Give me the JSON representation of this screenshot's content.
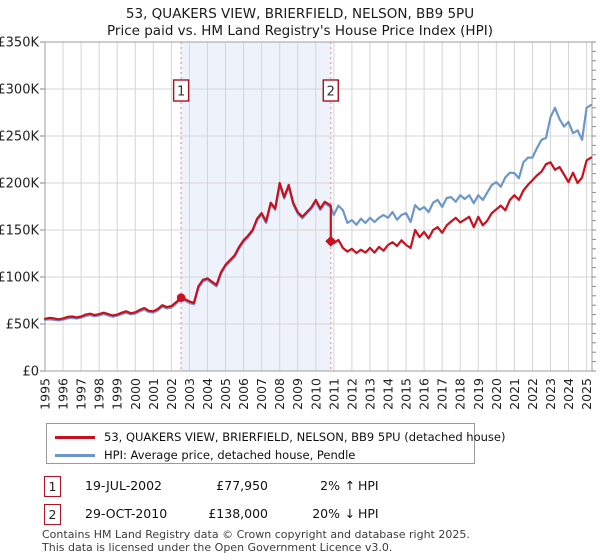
{
  "title": {
    "line1": "53, QUAKERS VIEW, BRIERFIELD, NELSON, BB9 5PU",
    "line2": "Price paid vs. HM Land Registry's House Price Index (HPI)"
  },
  "chart_data": {
    "type": "line",
    "title": "53, QUAKERS VIEW, BRIERFIELD, NELSON, BB9 5PU",
    "subtitle": "Price paid vs. HM Land Registry's House Price Index (HPI)",
    "ylim": [
      0,
      350000
    ],
    "ytick_step": 50000,
    "ytick_labels": [
      "£0",
      "£50K",
      "£100K",
      "£150K",
      "£200K",
      "£250K",
      "£300K",
      "£350K"
    ],
    "xlim": [
      1995,
      2025.3
    ],
    "xticks": [
      1995,
      1996,
      1997,
      1998,
      1999,
      2000,
      2001,
      2002,
      2003,
      2004,
      2005,
      2006,
      2007,
      2008,
      2009,
      2010,
      2011,
      2012,
      2013,
      2014,
      2015,
      2016,
      2017,
      2018,
      2019,
      2020,
      2021,
      2022,
      2023,
      2024,
      2025
    ],
    "grid": true,
    "legend_position": "bottom",
    "shaded_span": [
      2002.54,
      2010.83
    ],
    "colors": {
      "price_paid": "#c8101e",
      "hpi": "#6d97c9",
      "vline": "#f0919f",
      "callout_border": "#a8101f",
      "shade": "#eef2fb",
      "grid": "#d5d5d5",
      "frame": "#9c9c9c"
    },
    "vlines": [
      {
        "x": 2002.54,
        "label": "1"
      },
      {
        "x": 2010.83,
        "label": "2"
      }
    ],
    "markers": [
      {
        "x": 2002.54,
        "y": 77950,
        "shape": "circle",
        "label": "1"
      },
      {
        "x": 2010.83,
        "y": 138000,
        "shape": "diamond",
        "label": "2"
      }
    ],
    "series": [
      {
        "name": "53, QUAKERS VIEW, BRIERFIELD, NELSON, BB9 5PU (detached house)",
        "color": "#c8101e",
        "points": [
          [
            1995.0,
            55500
          ],
          [
            1995.25,
            56500
          ],
          [
            1995.5,
            56000
          ],
          [
            1995.75,
            55000
          ],
          [
            1996.0,
            56000
          ],
          [
            1996.25,
            57500
          ],
          [
            1996.5,
            58000
          ],
          [
            1996.75,
            57000
          ],
          [
            1997.0,
            58000
          ],
          [
            1997.25,
            60000
          ],
          [
            1997.5,
            61000
          ],
          [
            1997.75,
            59500
          ],
          [
            1998.0,
            60500
          ],
          [
            1998.25,
            62000
          ],
          [
            1998.5,
            60500
          ],
          [
            1998.75,
            59000
          ],
          [
            1999.0,
            60000
          ],
          [
            1999.25,
            62000
          ],
          [
            1999.5,
            63500
          ],
          [
            1999.75,
            61500
          ],
          [
            2000.0,
            62500
          ],
          [
            2000.25,
            65000
          ],
          [
            2000.5,
            67000
          ],
          [
            2000.75,
            64000
          ],
          [
            2001.0,
            63500
          ],
          [
            2001.25,
            66000
          ],
          [
            2001.5,
            70000
          ],
          [
            2001.75,
            68000
          ],
          [
            2002.0,
            69000
          ],
          [
            2002.25,
            73000
          ],
          [
            2002.54,
            77950
          ],
          [
            2002.75,
            76500
          ],
          [
            2003.0,
            74000
          ],
          [
            2003.25,
            72500
          ],
          [
            2003.5,
            90000
          ],
          [
            2003.75,
            97000
          ],
          [
            2004.0,
            98500
          ],
          [
            2004.25,
            95000
          ],
          [
            2004.5,
            91500
          ],
          [
            2004.75,
            105000
          ],
          [
            2005.0,
            113000
          ],
          [
            2005.25,
            118000
          ],
          [
            2005.5,
            123000
          ],
          [
            2005.75,
            132000
          ],
          [
            2006.0,
            139000
          ],
          [
            2006.25,
            144000
          ],
          [
            2006.5,
            150000
          ],
          [
            2006.75,
            162000
          ],
          [
            2007.0,
            168000
          ],
          [
            2007.25,
            159000
          ],
          [
            2007.5,
            179000
          ],
          [
            2007.75,
            173000
          ],
          [
            2008.0,
            200000
          ],
          [
            2008.25,
            185000
          ],
          [
            2008.5,
            198000
          ],
          [
            2008.75,
            179000
          ],
          [
            2009.0,
            169000
          ],
          [
            2009.25,
            164000
          ],
          [
            2009.5,
            169000
          ],
          [
            2009.75,
            174000
          ],
          [
            2010.0,
            182000
          ],
          [
            2010.25,
            173000
          ],
          [
            2010.5,
            180000
          ],
          [
            2010.83,
            176000
          ],
          [
            2010.83,
            138000
          ],
          [
            2011.0,
            136000
          ],
          [
            2011.25,
            139500
          ],
          [
            2011.5,
            131000
          ],
          [
            2011.75,
            127000
          ],
          [
            2012.0,
            130000
          ],
          [
            2012.25,
            125500
          ],
          [
            2012.5,
            129000
          ],
          [
            2012.75,
            126000
          ],
          [
            2013.0,
            131000
          ],
          [
            2013.25,
            126000
          ],
          [
            2013.5,
            132000
          ],
          [
            2013.75,
            128000
          ],
          [
            2014.0,
            134000
          ],
          [
            2014.25,
            137000
          ],
          [
            2014.5,
            133000
          ],
          [
            2014.75,
            139000
          ],
          [
            2015.0,
            134000
          ],
          [
            2015.25,
            131000
          ],
          [
            2015.5,
            150000
          ],
          [
            2015.75,
            142500
          ],
          [
            2016.0,
            148000
          ],
          [
            2016.25,
            141000
          ],
          [
            2016.5,
            150000
          ],
          [
            2016.75,
            153000
          ],
          [
            2017.0,
            147000
          ],
          [
            2017.25,
            155000
          ],
          [
            2017.5,
            159000
          ],
          [
            2017.75,
            163000
          ],
          [
            2018.0,
            158000
          ],
          [
            2018.25,
            161000
          ],
          [
            2018.5,
            164000
          ],
          [
            2018.75,
            153000
          ],
          [
            2019.0,
            164000
          ],
          [
            2019.25,
            155000
          ],
          [
            2019.5,
            160000
          ],
          [
            2019.75,
            168000
          ],
          [
            2020.0,
            172000
          ],
          [
            2020.25,
            176000
          ],
          [
            2020.5,
            171000
          ],
          [
            2020.75,
            182000
          ],
          [
            2021.0,
            187000
          ],
          [
            2021.25,
            182000
          ],
          [
            2021.5,
            192000
          ],
          [
            2021.75,
            198000
          ],
          [
            2022.0,
            203000
          ],
          [
            2022.25,
            208000
          ],
          [
            2022.5,
            212000
          ],
          [
            2022.75,
            220000
          ],
          [
            2023.0,
            222000
          ],
          [
            2023.25,
            214000
          ],
          [
            2023.5,
            217000
          ],
          [
            2023.75,
            209000
          ],
          [
            2024.0,
            201000
          ],
          [
            2024.25,
            211000
          ],
          [
            2024.5,
            200000
          ],
          [
            2024.75,
            206000
          ],
          [
            2025.0,
            224000
          ],
          [
            2025.25,
            227000
          ]
        ]
      },
      {
        "name": "HPI: Average price, detached house, Pendle",
        "color": "#6d97c9",
        "points": [
          [
            1995.0,
            54500
          ],
          [
            1995.25,
            55000
          ],
          [
            1995.5,
            54500
          ],
          [
            1995.75,
            53800
          ],
          [
            1996.0,
            54800
          ],
          [
            1996.25,
            56000
          ],
          [
            1996.5,
            56500
          ],
          [
            1996.75,
            55800
          ],
          [
            1997.0,
            56800
          ],
          [
            1997.25,
            58500
          ],
          [
            1997.5,
            59500
          ],
          [
            1997.75,
            58200
          ],
          [
            1998.0,
            59200
          ],
          [
            1998.25,
            60500
          ],
          [
            1998.5,
            59200
          ],
          [
            1998.75,
            57800
          ],
          [
            1999.0,
            58800
          ],
          [
            1999.25,
            60500
          ],
          [
            1999.5,
            62000
          ],
          [
            1999.75,
            60200
          ],
          [
            2000.0,
            61200
          ],
          [
            2000.25,
            63500
          ],
          [
            2000.5,
            65500
          ],
          [
            2000.75,
            62800
          ],
          [
            2001.0,
            62200
          ],
          [
            2001.25,
            64500
          ],
          [
            2001.5,
            68500
          ],
          [
            2001.75,
            66500
          ],
          [
            2002.0,
            67500
          ],
          [
            2002.25,
            71500
          ],
          [
            2002.54,
            76400
          ],
          [
            2002.75,
            75000
          ],
          [
            2003.0,
            72500
          ],
          [
            2003.25,
            71000
          ],
          [
            2003.5,
            88500
          ],
          [
            2003.75,
            95500
          ],
          [
            2004.0,
            97000
          ],
          [
            2004.25,
            93500
          ],
          [
            2004.5,
            90000
          ],
          [
            2004.75,
            103500
          ],
          [
            2005.0,
            111500
          ],
          [
            2005.25,
            116500
          ],
          [
            2005.5,
            121500
          ],
          [
            2005.75,
            130500
          ],
          [
            2006.0,
            137500
          ],
          [
            2006.25,
            142500
          ],
          [
            2006.5,
            148500
          ],
          [
            2006.75,
            160500
          ],
          [
            2007.0,
            166500
          ],
          [
            2007.25,
            157500
          ],
          [
            2007.5,
            177500
          ],
          [
            2007.75,
            171500
          ],
          [
            2008.0,
            198000
          ],
          [
            2008.25,
            183500
          ],
          [
            2008.5,
            196000
          ],
          [
            2008.75,
            177500
          ],
          [
            2009.0,
            167500
          ],
          [
            2009.25,
            162500
          ],
          [
            2009.5,
            167500
          ],
          [
            2009.75,
            172500
          ],
          [
            2010.0,
            180000
          ],
          [
            2010.25,
            171500
          ],
          [
            2010.5,
            178500
          ],
          [
            2010.83,
            174000
          ],
          [
            2011.0,
            166000
          ],
          [
            2011.25,
            176000
          ],
          [
            2011.5,
            171000
          ],
          [
            2011.75,
            157500
          ],
          [
            2012.0,
            160500
          ],
          [
            2012.25,
            155500
          ],
          [
            2012.5,
            162000
          ],
          [
            2012.75,
            157500
          ],
          [
            2013.0,
            163000
          ],
          [
            2013.25,
            158500
          ],
          [
            2013.5,
            163000
          ],
          [
            2013.75,
            166000
          ],
          [
            2014.0,
            163000
          ],
          [
            2014.25,
            169000
          ],
          [
            2014.5,
            161000
          ],
          [
            2014.75,
            166000
          ],
          [
            2015.0,
            168000
          ],
          [
            2015.25,
            158500
          ],
          [
            2015.5,
            176500
          ],
          [
            2015.75,
            171500
          ],
          [
            2016.0,
            174500
          ],
          [
            2016.25,
            169000
          ],
          [
            2016.5,
            179000
          ],
          [
            2016.75,
            182000
          ],
          [
            2017.0,
            174500
          ],
          [
            2017.25,
            184000
          ],
          [
            2017.5,
            185000
          ],
          [
            2017.75,
            180000
          ],
          [
            2018.0,
            187000
          ],
          [
            2018.25,
            183000
          ],
          [
            2018.5,
            187000
          ],
          [
            2018.75,
            178500
          ],
          [
            2019.0,
            187000
          ],
          [
            2019.25,
            182000
          ],
          [
            2019.5,
            190000
          ],
          [
            2019.75,
            198000
          ],
          [
            2020.0,
            201000
          ],
          [
            2020.25,
            196000
          ],
          [
            2020.5,
            206000
          ],
          [
            2020.75,
            211000
          ],
          [
            2021.0,
            210500
          ],
          [
            2021.25,
            205000
          ],
          [
            2021.5,
            222000
          ],
          [
            2021.75,
            227000
          ],
          [
            2022.0,
            227000
          ],
          [
            2022.25,
            237000
          ],
          [
            2022.5,
            246000
          ],
          [
            2022.75,
            248000
          ],
          [
            2023.0,
            270000
          ],
          [
            2023.25,
            280000
          ],
          [
            2023.5,
            268000
          ],
          [
            2023.75,
            260000
          ],
          [
            2024.0,
            265000
          ],
          [
            2024.25,
            253000
          ],
          [
            2024.5,
            256000
          ],
          [
            2024.75,
            246000
          ],
          [
            2025.0,
            280000
          ],
          [
            2025.25,
            283000
          ]
        ]
      }
    ]
  },
  "legend": {
    "items": [
      {
        "label": "53, QUAKERS VIEW, BRIERFIELD, NELSON, BB9 5PU (detached house)",
        "color": "#c8101e"
      },
      {
        "label": "HPI: Average price, detached house, Pendle",
        "color": "#6d97c9"
      }
    ]
  },
  "transactions": [
    {
      "n": "1",
      "date": "19-JUL-2002",
      "price": "£77,950",
      "hpi_pct": "2%",
      "hpi_dir": "↑",
      "hpi_label": "HPI"
    },
    {
      "n": "2",
      "date": "29-OCT-2010",
      "price": "£138,000",
      "hpi_pct": "20%",
      "hpi_dir": "↓",
      "hpi_label": "HPI"
    }
  ],
  "footer": {
    "line1": "Contains HM Land Registry data © Crown copyright and database right 2025.",
    "line2": "This data is licensed under the Open Government Licence v3.0."
  }
}
